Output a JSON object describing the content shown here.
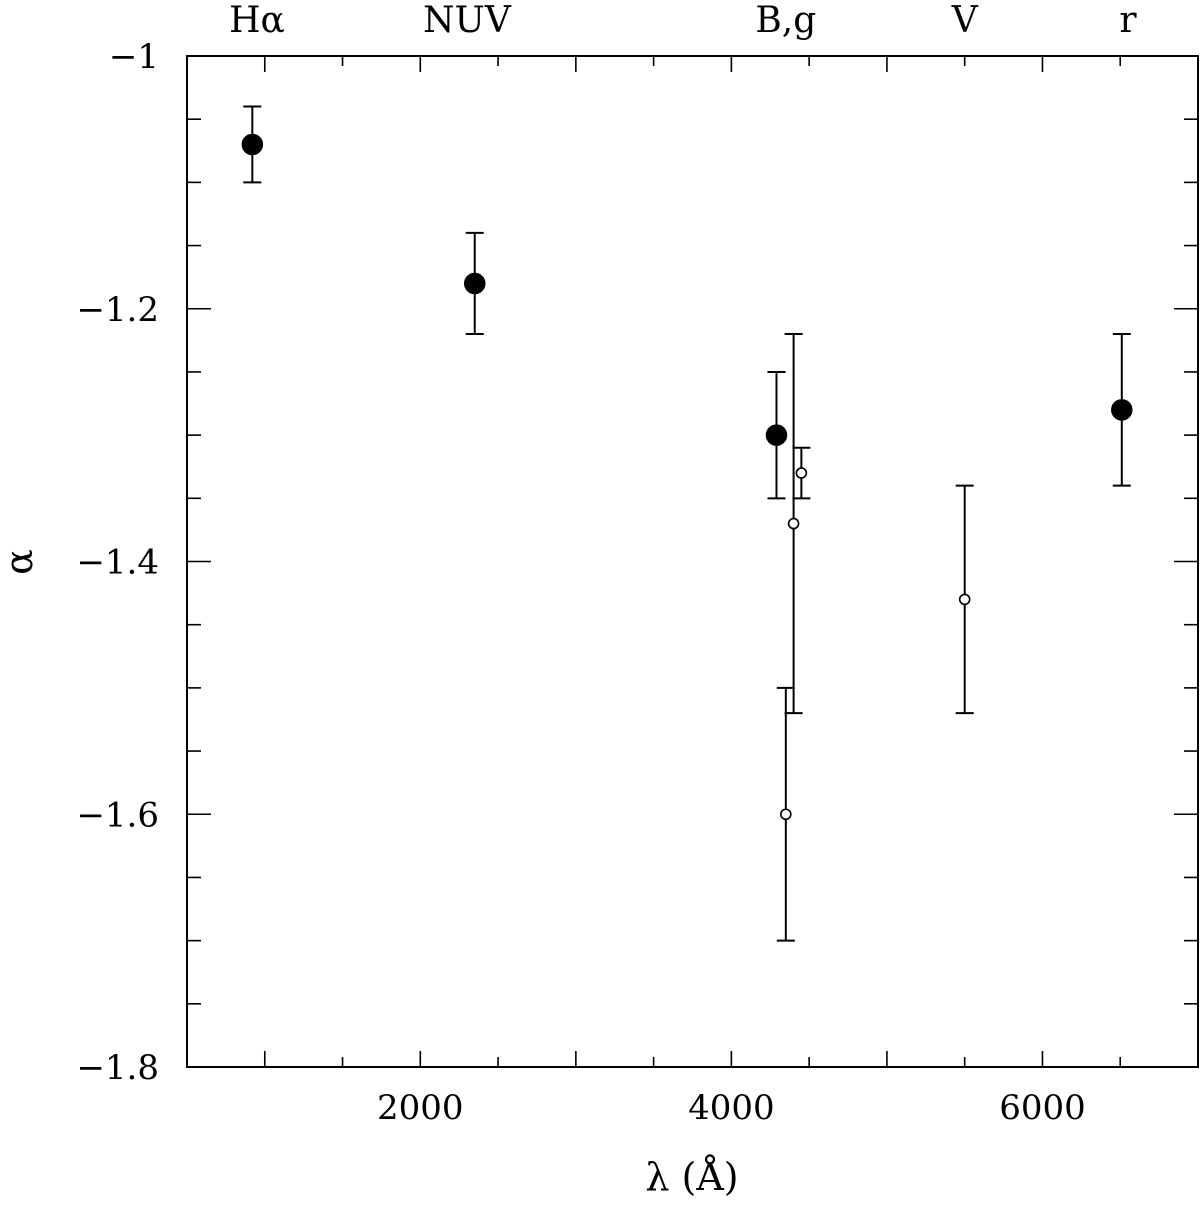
{
  "chart_data": {
    "type": "scatter",
    "title": "",
    "xlabel": "λ (Å)",
    "ylabel": "α",
    "xlim": [
      500,
      7000
    ],
    "ylim": [
      -1.8,
      -1.0
    ],
    "x_major_ticks": [
      2000,
      4000,
      6000
    ],
    "x_minor_tick_step": 500,
    "y_major_ticks": [
      -1.0,
      -1.2,
      -1.4,
      -1.6,
      -1.8
    ],
    "y_tick_labels": [
      "−1",
      "−1.2",
      "−1.4",
      "−1.6",
      "−1.8"
    ],
    "y_minor_tick_step": 0.05,
    "grid": false,
    "legend": "none",
    "top_band_labels": [
      {
        "label": "Hα",
        "x": 950
      },
      {
        "label": "NUV",
        "x": 2300
      },
      {
        "label": "B,g",
        "x": 4350
      },
      {
        "label": "V",
        "x": 5500
      },
      {
        "label": "r",
        "x": 6550
      }
    ],
    "series": [
      {
        "marker": "filled-circle",
        "points": [
          {
            "x": 920,
            "y": -1.07,
            "ylow": -1.1,
            "yhigh": -1.04
          },
          {
            "x": 2350,
            "y": -1.18,
            "ylow": -1.22,
            "yhigh": -1.14
          },
          {
            "x": 4290,
            "y": -1.3,
            "ylow": -1.35,
            "yhigh": -1.25
          },
          {
            "x": 6510,
            "y": -1.28,
            "ylow": -1.34,
            "yhigh": -1.22
          }
        ]
      },
      {
        "marker": "open-circle",
        "points": [
          {
            "x": 4350,
            "y": -1.6,
            "ylow": -1.7,
            "yhigh": -1.5
          },
          {
            "x": 4400,
            "y": -1.37,
            "ylow": -1.52,
            "yhigh": -1.22
          },
          {
            "x": 4450,
            "y": -1.33,
            "ylow": -1.35,
            "yhigh": -1.31
          },
          {
            "x": 5500,
            "y": -1.43,
            "ylow": -1.52,
            "yhigh": -1.34
          }
        ]
      }
    ]
  }
}
